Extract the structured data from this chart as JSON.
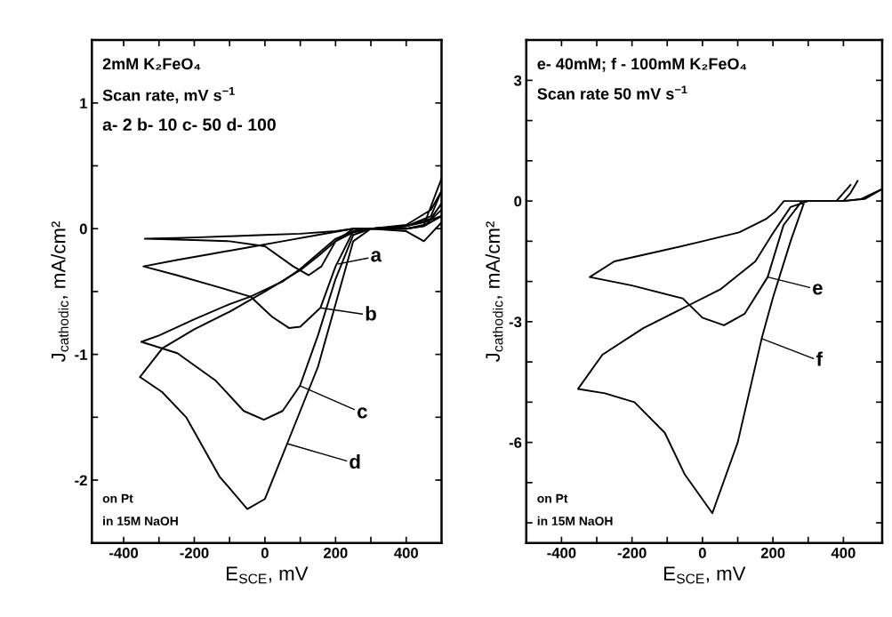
{
  "chart_data": [
    {
      "type": "line",
      "xlabel": "E$_{SCE}$, mV",
      "ylabel": "J$_{cathodic}$, mA/cm²",
      "xlim": [
        -490,
        500
      ],
      "xticks": [
        -400,
        {
          "value": -300,
          "label": null
        },
        -200,
        {
          "value": -100,
          "label": null
        },
        0,
        {
          "value": 100,
          "label": null
        },
        200,
        {
          "value": 300,
          "label": null
        },
        400
      ],
      "ylim": [
        -2.5,
        1.5
      ],
      "yticks": [
        -2,
        {
          "value": -1.5,
          "label": null
        },
        -1,
        {
          "value": -0.5,
          "label": null
        },
        0,
        {
          "value": 0.5,
          "label": null
        },
        1
      ],
      "grid": false,
      "marker": "none",
      "line_style": "solid",
      "annotations": [
        "2mM K₂FeO₄",
        "Scan rate, mV s$^{−1}$",
        "a- 2 b- 10 c- 50 d- 100",
        "on Pt",
        "in 15M NaOH",
        {
          "text": "a",
          "x": 208,
          "y": -0.28
        },
        {
          "text": "b",
          "x": 157,
          "y": -0.63
        },
        {
          "text": "c",
          "x": 99,
          "y": -1.25
        },
        {
          "text": "d",
          "x": 63,
          "y": -1.71
        }
      ],
      "series": [
        {
          "color": "#000000",
          "x": [
            500,
            450,
            400,
            300,
            250,
            200,
            160,
            124,
            80,
            0,
            -100,
            -200,
            -340,
            -200,
            -100,
            0,
            100,
            200,
            250,
            300,
            400,
            450,
            500
          ],
          "values": [
            0.05,
            -0.1,
            -0.02,
            0,
            0,
            -0.1,
            -0.3,
            -0.37,
            -0.3,
            -0.14,
            -0.1,
            -0.09,
            -0.08,
            -0.07,
            -0.06,
            -0.05,
            -0.04,
            -0.02,
            0,
            0,
            0.02,
            0.05,
            0.1
          ]
        },
        {
          "color": "#000000",
          "x": [
            500,
            450,
            400,
            300,
            250,
            200,
            157,
            100,
            68,
            20,
            -41,
            -150,
            -250,
            -344,
            -250,
            -150,
            -50,
            50,
            150,
            250,
            300,
            400,
            470,
            500
          ],
          "values": [
            0.1,
            0.02,
            0,
            0,
            -0.02,
            -0.3,
            -0.63,
            -0.78,
            -0.79,
            -0.7,
            -0.54,
            -0.45,
            -0.37,
            -0.3,
            -0.25,
            -0.2,
            -0.15,
            -0.1,
            -0.05,
            0,
            0,
            0.02,
            0.08,
            0.2
          ]
        },
        {
          "color": "#000000",
          "x": [
            500,
            450,
            400,
            300,
            250,
            200,
            150,
            99,
            50,
            -3,
            -60,
            -139,
            -248,
            -350,
            -300,
            -200,
            -100,
            -41,
            50,
            100,
            150,
            200,
            250,
            300,
            400,
            470,
            500
          ],
          "values": [
            0.15,
            0.02,
            0,
            0,
            -0.05,
            -0.4,
            -0.85,
            -1.25,
            -1.45,
            -1.52,
            -1.45,
            -1.21,
            -0.99,
            -0.9,
            -0.85,
            -0.72,
            -0.6,
            -0.54,
            -0.42,
            -0.32,
            -0.2,
            -0.08,
            -0.02,
            0,
            0.02,
            0.1,
            0.3
          ]
        },
        {
          "color": "#000000",
          "x": [
            500,
            450,
            400,
            300,
            250,
            200,
            150,
            100,
            63,
            0,
            -50,
            -129,
            -223,
            -291,
            -354,
            -290,
            -200,
            -100,
            0,
            100,
            150,
            200,
            250,
            300,
            400,
            470,
            500
          ],
          "values": [
            0.4,
            0.03,
            0,
            0,
            -0.1,
            -0.6,
            -1.1,
            -1.45,
            -1.71,
            -2.15,
            -2.23,
            -1.97,
            -1.5,
            -1.3,
            -1.18,
            -0.95,
            -0.8,
            -0.66,
            -0.5,
            -0.33,
            -0.22,
            -0.1,
            -0.03,
            0,
            0.03,
            0.15,
            0.3
          ]
        }
      ]
    },
    {
      "type": "line",
      "xlabel": "E$_{SCE}$, mV",
      "ylabel": "J$_{cathodic}$, mA/cm²",
      "xlim": [
        -500,
        510
      ],
      "xticks": [
        -400,
        {
          "value": -300,
          "label": null
        },
        -200,
        {
          "value": -100,
          "label": null
        },
        0,
        {
          "value": 100,
          "label": null
        },
        200,
        {
          "value": 300,
          "label": null
        },
        400
      ],
      "ylim": [
        -8.5,
        4
      ],
      "yticks": [
        {
          "value": -8,
          "label": null
        },
        {
          "value": -7,
          "label": null
        },
        -6,
        {
          "value": -5,
          "label": null
        },
        {
          "value": -4,
          "label": null
        },
        -3,
        {
          "value": -2,
          "label": null
        },
        {
          "value": -1,
          "label": null
        },
        0,
        {
          "value": 1,
          "label": null
        },
        {
          "value": 2,
          "label": null
        },
        3
      ],
      "grid": false,
      "marker": "none",
      "line_style": "solid",
      "annotations": [
        "e- 40mM; f - 100mM K₂FeO₄",
        "Scan rate 50 mV s$^{−1}$",
        "on Pt",
        "in 15M NaOH",
        {
          "text": "e",
          "x": 185,
          "y": -1.89
        },
        {
          "text": "f",
          "x": 168,
          "y": -3.42
        }
      ],
      "series": [
        {
          "color": "#000000",
          "x": [
            510,
            450,
            400,
            300,
            282,
            230,
            185,
            120,
            61,
            0,
            -56,
            -200,
            -320,
            -250,
            -107,
            0,
            104,
            180,
            206,
            231,
            300,
            400,
            420,
            440
          ],
          "values": [
            0.3,
            0.05,
            0,
            0,
            0,
            -0.6,
            -1.89,
            -2.8,
            -3.09,
            -2.9,
            -2.42,
            -2.1,
            -1.89,
            -1.5,
            -1.22,
            -1.0,
            -0.78,
            -0.45,
            -0.27,
            0,
            0,
            0,
            0.2,
            0.5
          ]
        },
        {
          "color": "#000000",
          "x": [
            510,
            460,
            400,
            300,
            290,
            250,
            200,
            168,
            100,
            28,
            -50,
            -107,
            -193,
            -277,
            -353,
            -284,
            -168,
            -41,
            50,
            150,
            200,
            250,
            300,
            380,
            420
          ],
          "values": [
            0.3,
            0.05,
            0,
            0,
            0,
            -1.0,
            -2.4,
            -3.42,
            -6.0,
            -7.76,
            -6.8,
            -5.76,
            -5.0,
            -4.78,
            -4.67,
            -3.82,
            -3.16,
            -2.6,
            -2.2,
            -1.5,
            -0.8,
            -0.15,
            0,
            0,
            0.4
          ]
        }
      ]
    }
  ]
}
